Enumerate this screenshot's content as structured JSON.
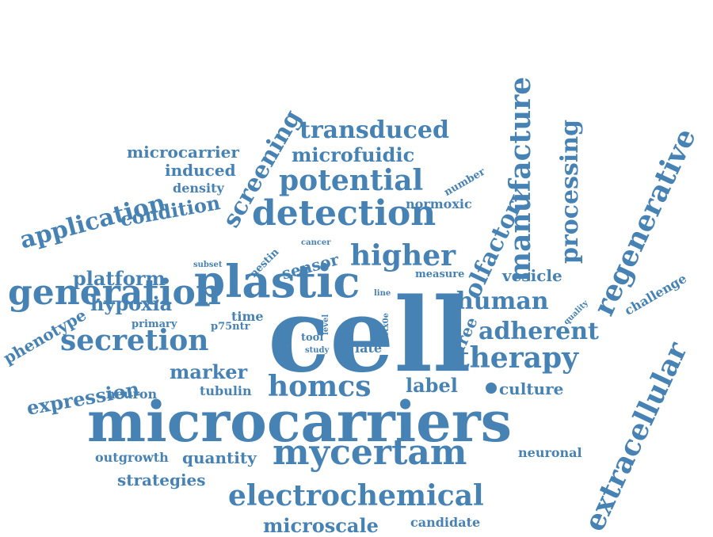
{
  "color": "#4682b4",
  "words": {
    "cell": "cell",
    "microcarriers": "microcarriers",
    "plastic": "plastic",
    "mycertam": "mycertam",
    "electrochemical": "electrochemical",
    "detection": "detection",
    "generation": "generation",
    "secretion": "secretion",
    "potential": "potential",
    "higher": "higher",
    "homcs": "homcs",
    "therapy": "therapy",
    "adherent": "adherent",
    "human": "human",
    "manufacture": "manufacture",
    "processing": "processing",
    "regenerative": "regenerative",
    "olfactory": "olfactory",
    "extracellular": "extracellular",
    "screening": "screening",
    "transduced": "transduced",
    "microfuidic": "microfuidic",
    "microcarrier": "microcarrier",
    "induced": "induced",
    "density": "density",
    "application": "application",
    "condition": "condition",
    "platform": "platform",
    "hypoxia": "hypoxia",
    "phenotype": "phenotype",
    "primary": "primary",
    "expression": "expression",
    "marker": "marker",
    "neuron": "neuron",
    "tubulin": "tubulin",
    "label": "label",
    "culture": "culture",
    "vesicle": "vesicle",
    "challenge": "challenge",
    "free": "free",
    "quality": "quality",
    "measure": "measure",
    "sensor": "sensor",
    "nestin": "nestin",
    "cancer": "cancer",
    "subset": "subset",
    "time": "time",
    "p75ntr": "p75ntr",
    "tool": "tool",
    "study": "study",
    "level": "level",
    "late": "late",
    "ctx0e": "ctx0e",
    "line": "line",
    "number": "number",
    "normoxic": "normoxic",
    "outgrowth": "outgrowth",
    "quantity": "quantity",
    "strategies": "strategies",
    "neuronal": "neuronal",
    "microscale": "microscale",
    "candidate": "candidate"
  }
}
